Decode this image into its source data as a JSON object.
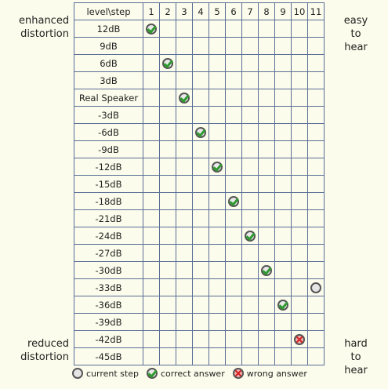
{
  "labels": {
    "enhanced": "enhanced distortion",
    "reduced": "reduced distortion",
    "easy": "easy to hear",
    "hard": "hard to hear"
  },
  "table": {
    "corner": "level\\step",
    "steps": [
      "1",
      "2",
      "3",
      "4",
      "5",
      "6",
      "7",
      "8",
      "9",
      "10",
      "11"
    ],
    "levels": [
      "12dB",
      "9dB",
      "6dB",
      "3dB",
      "Real Speaker",
      "-3dB",
      "-6dB",
      "-9dB",
      "-12dB",
      "-15dB",
      "-18dB",
      "-21dB",
      "-24dB",
      "-27dB",
      "-30dB",
      "-33dB",
      "-36dB",
      "-39dB",
      "-42dB",
      "-45dB"
    ]
  },
  "answers": [
    {
      "step": 1,
      "level": "12dB",
      "status": "correct"
    },
    {
      "step": 2,
      "level": "6dB",
      "status": "correct"
    },
    {
      "step": 3,
      "level": "Real Speaker",
      "status": "correct"
    },
    {
      "step": 4,
      "level": "-6dB",
      "status": "correct"
    },
    {
      "step": 5,
      "level": "-12dB",
      "status": "correct"
    },
    {
      "step": 6,
      "level": "-18dB",
      "status": "correct"
    },
    {
      "step": 7,
      "level": "-24dB",
      "status": "correct"
    },
    {
      "step": 8,
      "level": "-30dB",
      "status": "correct"
    },
    {
      "step": 9,
      "level": "-36dB",
      "status": "correct"
    },
    {
      "step": 10,
      "level": "-42dB",
      "status": "wrong"
    },
    {
      "step": 11,
      "level": "-33dB",
      "status": "current"
    }
  ],
  "legend": {
    "current": "current step",
    "correct": "correct answer",
    "wrong": "wrong answer"
  },
  "icons": {
    "current": "circle-icon",
    "correct": "check-icon",
    "wrong": "x-icon"
  },
  "colors": {
    "background": "#fcfcec",
    "grid": "#5a6e96",
    "check": "#2f9a2f",
    "wrong": "#d42020"
  }
}
